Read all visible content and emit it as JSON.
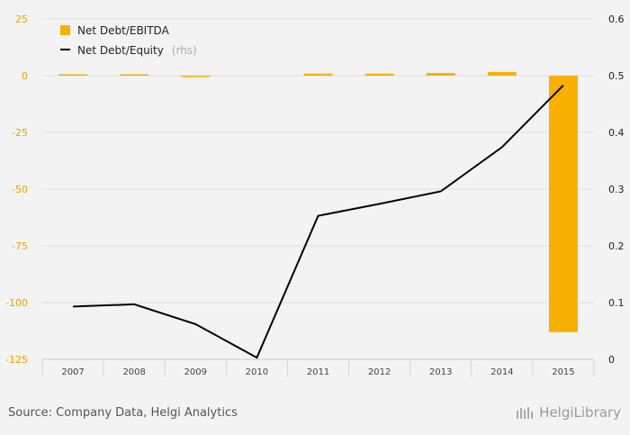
{
  "chart_data": {
    "type": "bar+line",
    "categories": [
      "2007",
      "2008",
      "2009",
      "2010",
      "2011",
      "2012",
      "2013",
      "2014",
      "2015"
    ],
    "series": [
      {
        "name": "Net Debt/EBITDA",
        "type": "bar",
        "axis": "left",
        "color": "#f7b000",
        "values": [
          0.4,
          0.3,
          -0.2,
          0,
          0.9,
          0.9,
          1.2,
          1.6,
          -113
        ]
      },
      {
        "name": "Net Debt/Equity",
        "name_suffix": "(rhs)",
        "type": "line",
        "axis": "right",
        "color": "#000000",
        "values": [
          0.093,
          0.097,
          0.062,
          0.003,
          0.253,
          0.274,
          0.296,
          0.374,
          0.483
        ]
      }
    ],
    "y_left": {
      "ticks": [
        "25",
        "0",
        "-25",
        "-50",
        "-75",
        "-100",
        "-125"
      ],
      "range": [
        -125,
        25
      ]
    },
    "y_right": {
      "ticks": [
        "0.6",
        "0.5",
        "0.4",
        "0.3",
        "0.2",
        "0.1",
        "0"
      ],
      "range": [
        0,
        0.6
      ]
    },
    "grid": true,
    "legend": "top-left"
  },
  "footer": {
    "source": "Source: Company Data, Helgi Analytics",
    "logo": "HelgiLibrary"
  }
}
